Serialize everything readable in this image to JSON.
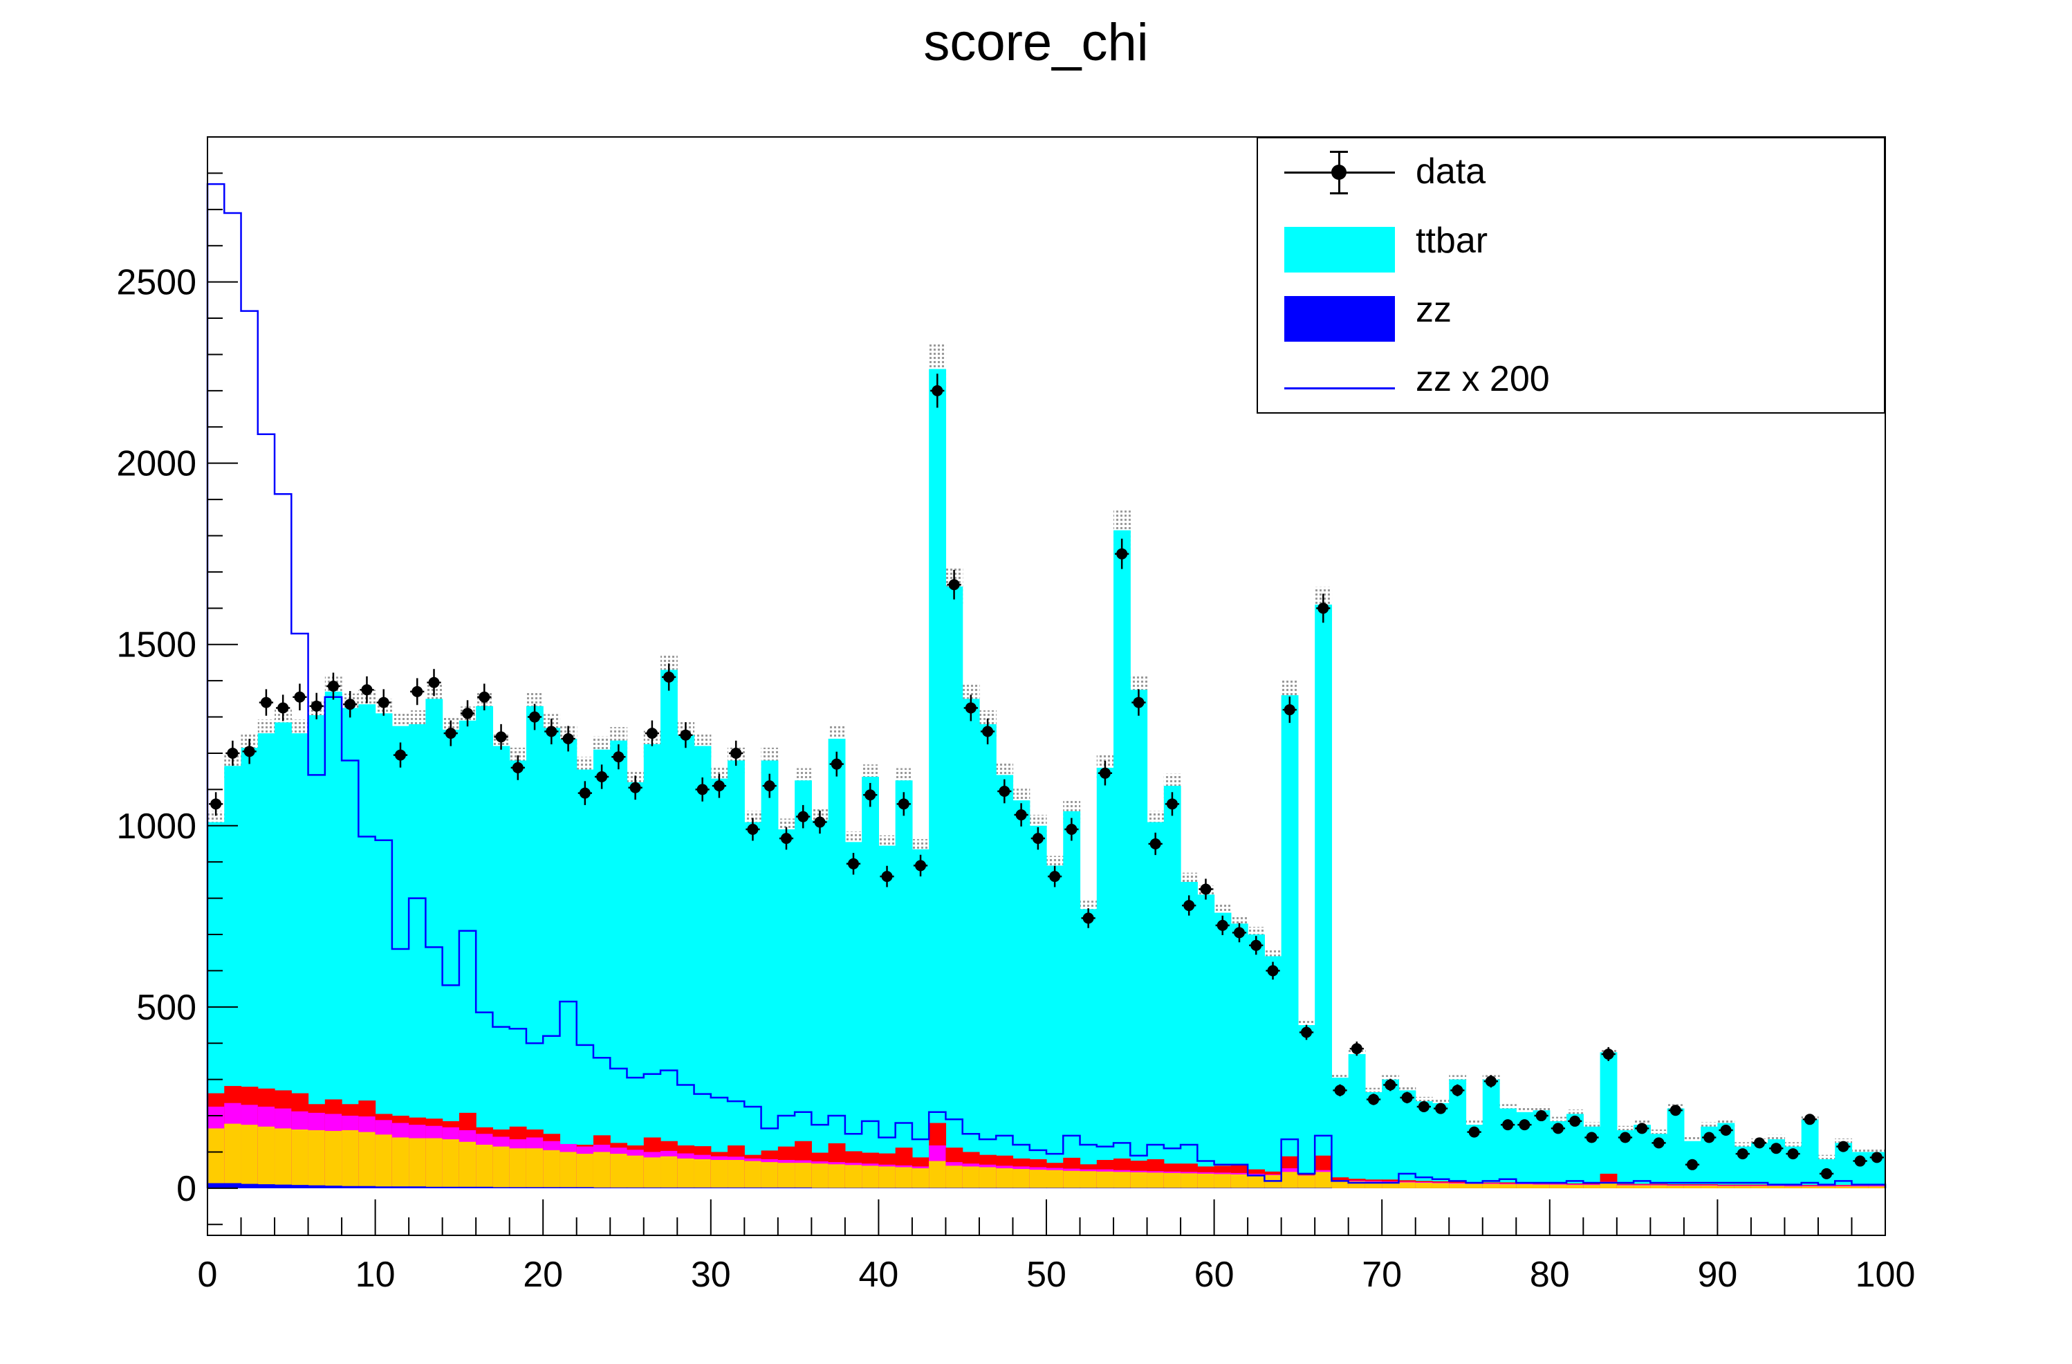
{
  "chart_data": {
    "type": "bar",
    "title": "score_chi",
    "xlabel": "",
    "ylabel": "",
    "xlim": [
      0,
      100
    ],
    "ylim": [
      -130,
      2900
    ],
    "bin_width": 1,
    "x_ticks": [
      0,
      10,
      20,
      30,
      40,
      50,
      60,
      70,
      80,
      90,
      100
    ],
    "y_ticks": [
      0,
      500,
      1000,
      1500,
      2000,
      2500
    ],
    "colors": {
      "ttbar": "#00ffff",
      "zz": "#0000ff",
      "bkg_orange": "#ffcc00",
      "bkg_magenta": "#ff00ff",
      "bkg_red": "#ff0000",
      "zz_scaled_line": "#0000ff",
      "data": "#000000"
    },
    "legend": [
      {
        "label": "data",
        "style": "marker"
      },
      {
        "label": "ttbar",
        "style": "fill",
        "color": "#00ffff"
      },
      {
        "label": "zz",
        "style": "fill",
        "color": "#0000ff"
      },
      {
        "label": "zz x 200",
        "style": "line",
        "color": "#0000ff"
      }
    ],
    "series": [
      {
        "name": "data",
        "values": [
          1060,
          1200,
          1205,
          1340,
          1325,
          1355,
          1330,
          1385,
          1335,
          1375,
          1340,
          1195,
          1370,
          1395,
          1255,
          1310,
          1355,
          1245,
          1160,
          1300,
          1260,
          1240,
          1090,
          1135,
          1190,
          1105,
          1255,
          1410,
          1250,
          1100,
          1110,
          1200,
          990,
          1110,
          965,
          1025,
          1010,
          1170,
          895,
          1085,
          860,
          1060,
          890,
          2200,
          1665,
          1325,
          1260,
          1095,
          1030,
          965,
          860,
          990,
          745,
          1145,
          1750,
          1340,
          950,
          1060,
          780,
          825,
          725,
          705,
          670,
          600,
          1320,
          430,
          1600,
          270,
          385,
          245,
          285,
          250,
          225,
          220,
          270,
          155,
          295,
          175,
          175,
          200,
          165,
          185,
          140,
          370,
          140,
          165,
          125,
          215,
          65,
          140,
          160,
          95,
          125,
          110,
          95,
          190,
          40,
          115,
          75,
          85
        ]
      },
      {
        "name": "ttbar_stack_total",
        "values": [
          1010,
          1165,
          1215,
          1255,
          1285,
          1255,
          1305,
          1370,
          1325,
          1335,
          1310,
          1275,
          1280,
          1350,
          1265,
          1290,
          1330,
          1220,
          1180,
          1330,
          1270,
          1240,
          1155,
          1210,
          1235,
          1120,
          1225,
          1430,
          1250,
          1220,
          1130,
          1180,
          1010,
          1180,
          990,
          1125,
          1015,
          1240,
          955,
          1135,
          945,
          1125,
          935,
          2260,
          1660,
          1350,
          1280,
          1140,
          1070,
          1000,
          890,
          1040,
          770,
          1160,
          1815,
          1375,
          1010,
          1110,
          845,
          810,
          760,
          730,
          700,
          640,
          1360,
          450,
          1610,
          305,
          370,
          265,
          300,
          270,
          240,
          235,
          300,
          175,
          300,
          220,
          210,
          215,
          185,
          205,
          170,
          375,
          160,
          175,
          150,
          220,
          130,
          170,
          180,
          115,
          125,
          135,
          115,
          190,
          80,
          125,
          100,
          100
        ]
      },
      {
        "name": "bkg_orange_top",
        "values": [
          165,
          178,
          175,
          170,
          165,
          162,
          160,
          158,
          160,
          155,
          148,
          140,
          138,
          138,
          135,
          128,
          120,
          115,
          110,
          110,
          105,
          100,
          95,
          100,
          95,
          90,
          85,
          88,
          82,
          80,
          78,
          78,
          75,
          72,
          70,
          70,
          68,
          66,
          64,
          62,
          60,
          58,
          55,
          75,
          62,
          60,
          58,
          55,
          53,
          51,
          50,
          48,
          47,
          46,
          45,
          44,
          43,
          42,
          41,
          40,
          39,
          38,
          37,
          36,
          45,
          35,
          45,
          20,
          19,
          18,
          17,
          16,
          15,
          14,
          13,
          12,
          12,
          11,
          11,
          10,
          10,
          9,
          9,
          15,
          8,
          8,
          8,
          7,
          7,
          7,
          6,
          6,
          6,
          6,
          5,
          5,
          5,
          5,
          5,
          5
        ]
      },
      {
        "name": "bkg_magenta_top",
        "values": [
          225,
          235,
          230,
          225,
          220,
          212,
          208,
          205,
          200,
          198,
          188,
          180,
          175,
          172,
          168,
          160,
          150,
          142,
          135,
          140,
          130,
          122,
          115,
          120,
          112,
          106,
          100,
          103,
          96,
          92,
          88,
          87,
          82,
          80,
          78,
          77,
          74,
          72,
          70,
          68,
          65,
          63,
          60,
          118,
          72,
          68,
          65,
          62,
          60,
          58,
          56,
          54,
          52,
          52,
          50,
          48,
          47,
          46,
          45,
          44,
          43,
          42,
          40,
          38,
          55,
          36,
          50,
          22,
          21,
          20,
          19,
          18,
          17,
          16,
          15,
          14,
          14,
          13,
          13,
          12,
          12,
          11,
          11,
          18,
          10,
          10,
          10,
          9,
          9,
          9,
          8,
          8,
          8,
          8,
          7,
          7,
          7,
          7,
          7,
          7
        ]
      },
      {
        "name": "bkg_red_top",
        "values": [
          262,
          282,
          280,
          275,
          270,
          262,
          232,
          245,
          232,
          242,
          205,
          200,
          195,
          192,
          185,
          208,
          168,
          162,
          170,
          162,
          150,
          118,
          120,
          146,
          125,
          118,
          140,
          130,
          118,
          116,
          100,
          118,
          92,
          104,
          115,
          130,
          98,
          124,
          102,
          98,
          96,
          112,
          85,
          180,
          112,
          100,
          92,
          90,
          82,
          80,
          70,
          84,
          66,
          78,
          82,
          76,
          80,
          68,
          68,
          60,
          62,
          66,
          52,
          46,
          88,
          42,
          90,
          30,
          26,
          24,
          24,
          22,
          20,
          19,
          18,
          17,
          16,
          16,
          15,
          14,
          14,
          13,
          13,
          40,
          12,
          12,
          12,
          11,
          11,
          11,
          10,
          10,
          10,
          10,
          9,
          9,
          9,
          9,
          9,
          9
        ]
      },
      {
        "name": "zz",
        "values": [
          14,
          14,
          12,
          11,
          10,
          9,
          8,
          7,
          6,
          6,
          5,
          5,
          5,
          4,
          4,
          4,
          4,
          3,
          3,
          3,
          3,
          3,
          3,
          2,
          2,
          2,
          2,
          2,
          2,
          2,
          2,
          2,
          2,
          2,
          2,
          2,
          1,
          1,
          1,
          1,
          1,
          1,
          1,
          1,
          1,
          1,
          1,
          1,
          1,
          1,
          1,
          1,
          1,
          1,
          1,
          1,
          1,
          1,
          1,
          1,
          1,
          1,
          1,
          1,
          1,
          1,
          1,
          0,
          0,
          0,
          0,
          0,
          0,
          0,
          0,
          0,
          0,
          0,
          0,
          0,
          0,
          0,
          0,
          0,
          0,
          0,
          0,
          0,
          0,
          0,
          0,
          0,
          0,
          0,
          0,
          0,
          0,
          0,
          0,
          0
        ]
      },
      {
        "name": "zz x 200",
        "values": [
          2770,
          2690,
          2420,
          2080,
          1915,
          1530,
          1140,
          1355,
          1180,
          970,
          960,
          660,
          800,
          665,
          560,
          710,
          485,
          445,
          440,
          400,
          420,
          515,
          395,
          360,
          330,
          305,
          315,
          325,
          285,
          260,
          250,
          240,
          225,
          165,
          200,
          210,
          175,
          200,
          150,
          185,
          140,
          180,
          135,
          210,
          190,
          150,
          135,
          145,
          120,
          105,
          95,
          145,
          120,
          115,
          125,
          90,
          120,
          110,
          120,
          75,
          65,
          65,
          35,
          20,
          135,
          40,
          145,
          20,
          15,
          15,
          15,
          40,
          30,
          25,
          20,
          15,
          20,
          25,
          15,
          15,
          15,
          20,
          15,
          15,
          15,
          20,
          15,
          15,
          15,
          15,
          15,
          15,
          15,
          10,
          10,
          15,
          10,
          20,
          10,
          10
        ]
      }
    ]
  }
}
